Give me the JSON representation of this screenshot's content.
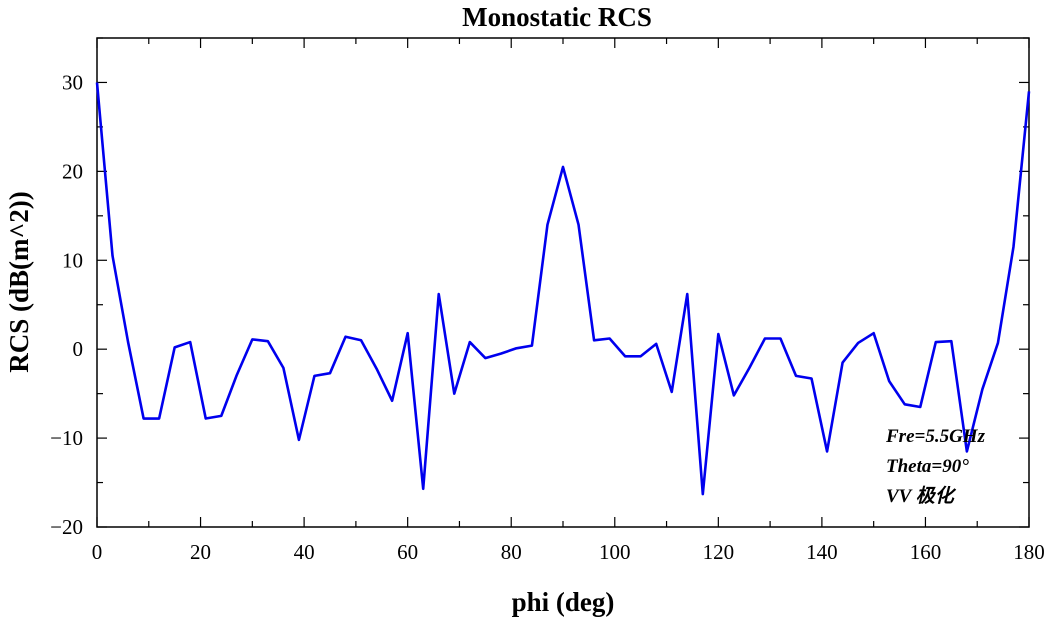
{
  "chart_data": {
    "type": "line",
    "title": "Monostatic RCS",
    "xlabel": "phi (deg)",
    "ylabel": "RCS (dB(m^2))",
    "xlim": [
      0,
      180
    ],
    "ylim": [
      -20,
      35
    ],
    "xticks": [
      0,
      20,
      40,
      60,
      80,
      100,
      120,
      140,
      160,
      180
    ],
    "yticks": [
      -20,
      -10,
      0,
      10,
      20,
      30
    ],
    "grid": false,
    "color": "#0000ee",
    "annotations": [
      "Fre=5.5GHz",
      "Theta=90°",
      "VV 极化"
    ],
    "series": [
      {
        "x": [
          0,
          3,
          6,
          9,
          12,
          15,
          18,
          21,
          24,
          27,
          30,
          33,
          36,
          39,
          42,
          45,
          48,
          51,
          54,
          57,
          60,
          63,
          66,
          69,
          72,
          75,
          78,
          81,
          84,
          87,
          90,
          93,
          96,
          99,
          102,
          105,
          108,
          111,
          114,
          117,
          120,
          123,
          126,
          129,
          132,
          135,
          138,
          141,
          144,
          147,
          150,
          153,
          156,
          159,
          162,
          165,
          168,
          171,
          174,
          177,
          180
        ],
        "y": [
          30,
          10.5,
          0.8,
          -7.8,
          -7.8,
          0.2,
          0.8,
          -7.8,
          -7.5,
          -2.9,
          1.1,
          0.9,
          -2.1,
          -10.2,
          -3,
          -2.7,
          1.4,
          1,
          -2.2,
          -5.8,
          1.8,
          -15.7,
          6.2,
          -5,
          0.8,
          -1,
          -0.5,
          0.1,
          0.4,
          14,
          20.5,
          14,
          1,
          1.2,
          -0.8,
          -0.8,
          0.6,
          -4.8,
          6.2,
          -16.3,
          1.7,
          -5.2,
          -2.1,
          1.2,
          1.2,
          -3,
          -3.3,
          -11.5,
          -1.5,
          0.7,
          1.8,
          -3.6,
          -6.2,
          -6.5,
          0.8,
          0.9,
          -11.5,
          -4.5,
          0.7,
          11.5,
          29
        ]
      }
    ]
  }
}
